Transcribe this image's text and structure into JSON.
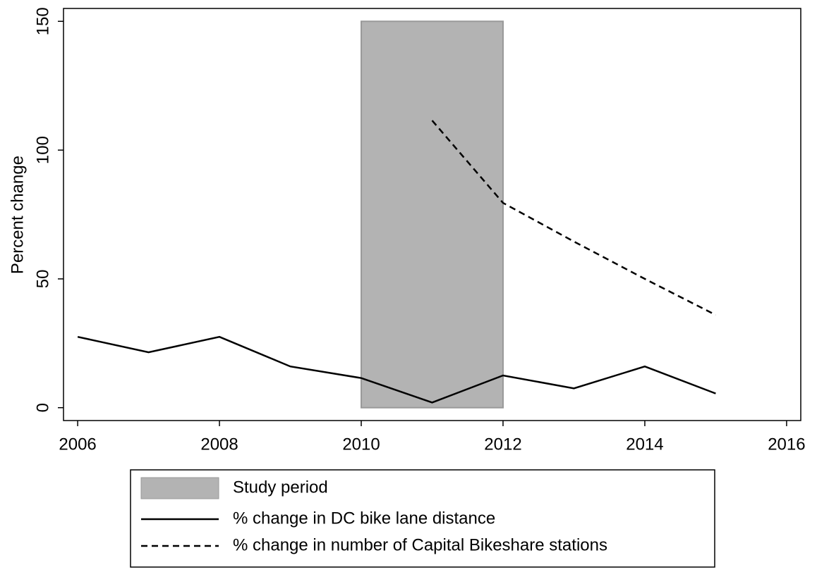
{
  "chart_data": {
    "type": "line",
    "y_label": "Percent change",
    "x": [
      2006,
      2007,
      2008,
      2009,
      2010,
      2011,
      2012,
      2013,
      2014,
      2015
    ],
    "shade": {
      "name": "Study period",
      "x": [
        2010,
        2012
      ],
      "y": [
        0,
        150
      ],
      "color": "#b3b3b3"
    },
    "series": [
      {
        "name": "% change in DC bike lane distance",
        "color": "#000000",
        "dash": false,
        "values": [
          27.5,
          21.5,
          27.5,
          16,
          11.5,
          2,
          12.5,
          7.5,
          16,
          5.5
        ]
      },
      {
        "name": "% change in number of Capital Bikeshare stations",
        "color": "#000000",
        "dash": true,
        "values": [
          null,
          null,
          null,
          null,
          null,
          111.5,
          79.5,
          64.5,
          50,
          36
        ]
      }
    ],
    "xlim": [
      2005.8,
      2016.2
    ],
    "xticks": [
      2006,
      2008,
      2010,
      2012,
      2014,
      2016
    ],
    "ylim": [
      -5,
      155
    ],
    "yticks": [
      0,
      50,
      100,
      150
    ],
    "legend": "bottom"
  }
}
